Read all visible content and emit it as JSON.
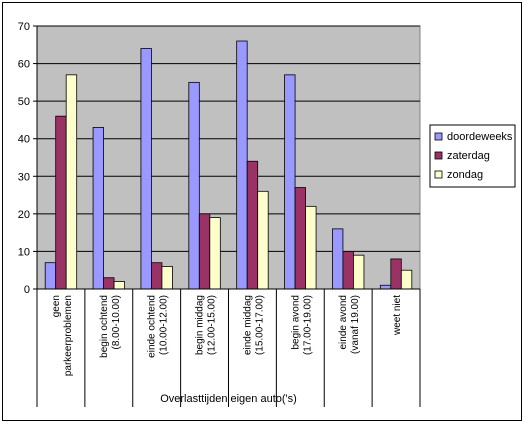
{
  "chart_data": {
    "type": "bar",
    "xlabel": "Overlasttijden eigen auto('s)",
    "ylabel": "",
    "ylim": [
      0,
      70
    ],
    "yticks": [
      0,
      10,
      20,
      30,
      40,
      50,
      60,
      70
    ],
    "grid": true,
    "legend_position": "right",
    "categories": [
      [
        "geen",
        "parkeerproblemen"
      ],
      [
        "begin ochtend",
        "(8.00-10.00)"
      ],
      [
        "einde ochtend",
        "(10.00-12.00)"
      ],
      [
        "begin middag",
        "(12.00-15.00)"
      ],
      [
        "einde middag",
        "(15.00-17.00)"
      ],
      [
        "begin avond",
        "(17.00-19.00)"
      ],
      [
        "einde avond",
        "(vanaf 19.00)"
      ],
      [
        "weet niet"
      ]
    ],
    "series": [
      {
        "name": "doordeweeks",
        "color": "#9999ff",
        "values": [
          7,
          43,
          64,
          55,
          66,
          57,
          16,
          1
        ]
      },
      {
        "name": "zaterdag",
        "color": "#993366",
        "values": [
          46,
          3,
          7,
          20,
          34,
          27,
          10,
          8
        ]
      },
      {
        "name": "zondag",
        "color": "#ffffcc",
        "values": [
          57,
          2,
          6,
          19,
          26,
          22,
          9,
          5
        ]
      }
    ],
    "colors": {
      "plot_background": "#c0c0c0",
      "grid": "#000000"
    }
  }
}
